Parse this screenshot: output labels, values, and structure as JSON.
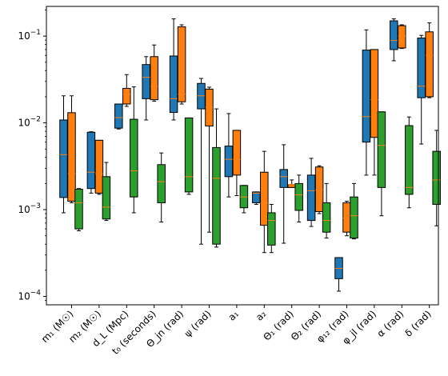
{
  "chart_data": {
    "type": "box",
    "yscale": "log",
    "ylim": [
      8e-05,
      0.22
    ],
    "yticks": [
      {
        "value": 0.0001,
        "base": "10",
        "exp": "−4"
      },
      {
        "value": 0.001,
        "base": "10",
        "exp": "−3"
      },
      {
        "value": 0.01,
        "base": "10",
        "exp": "−2"
      },
      {
        "value": 0.1,
        "base": "10",
        "exp": "−1"
      }
    ],
    "grid": false,
    "legend": "none",
    "categories": [
      {
        "label": "m₁ (M☉)"
      },
      {
        "label": "m₂ (M☉)"
      },
      {
        "label": "d_L (Mpc)"
      },
      {
        "label": "t₀ (seconds)"
      },
      {
        "label": "Θ_jn (rad)"
      },
      {
        "label": "ψ (rad)"
      },
      {
        "label": "a₁"
      },
      {
        "label": "a₂"
      },
      {
        "label": "Θ₁ (rad)"
      },
      {
        "label": "Θ₂ (rad)"
      },
      {
        "label": "φ₁₂ (rad)"
      },
      {
        "label": "φ_jl (rad)"
      },
      {
        "label": "α (rad)"
      },
      {
        "label": "δ (rad)"
      }
    ],
    "median_color": "#ff7f0e",
    "series": [
      {
        "color": "#1f77b4",
        "boxes": [
          {
            "whislo": 0.00092,
            "q1": 0.00138,
            "med": 0.0043,
            "q3": 0.0108,
            "whishi": 0.0205
          },
          {
            "whislo": 0.00155,
            "q1": 0.00175,
            "med": 0.0027,
            "q3": 0.0078,
            "whishi": 0.0079
          },
          {
            "whislo": 0.0085,
            "q1": 0.0087,
            "med": 0.0115,
            "q3": 0.0165,
            "whishi": 0.0165
          },
          {
            "whislo": 0.0108,
            "q1": 0.019,
            "med": 0.0335,
            "q3": 0.047,
            "whishi": 0.058
          },
          {
            "whislo": 0.0108,
            "q1": 0.0132,
            "med": 0.019,
            "q3": 0.059,
            "whishi": 0.158
          },
          {
            "whislo": 0.0004,
            "q1": 0.0145,
            "med": 0.0205,
            "q3": 0.0285,
            "whishi": 0.0325
          },
          {
            "whislo": 0.0014,
            "q1": 0.0024,
            "med": 0.0038,
            "q3": 0.0054,
            "whishi": 0.0128
          },
          {
            "whislo": 0.00115,
            "q1": 0.0012,
            "med": 0.00155,
            "q3": 0.0016,
            "whishi": 0.0016
          },
          {
            "whislo": 0.00041,
            "q1": 0.0018,
            "med": 0.0024,
            "q3": 0.0029,
            "whishi": 0.0056
          },
          {
            "whislo": 0.00064,
            "q1": 0.00075,
            "med": 0.00165,
            "q3": 0.0025,
            "whishi": 0.0039
          },
          {
            "whislo": 0.000115,
            "q1": 0.00016,
            "med": 0.00021,
            "q3": 0.00028,
            "whishi": 0.00028
          },
          {
            "whislo": 0.0025,
            "q1": 0.006,
            "med": 0.0118,
            "q3": 0.069,
            "whishi": 0.118
          },
          {
            "whislo": 0.052,
            "q1": 0.07,
            "med": 0.089,
            "q3": 0.15,
            "whishi": 0.158
          },
          {
            "whislo": 0.0057,
            "q1": 0.0195,
            "med": 0.0265,
            "q3": 0.095,
            "whishi": 0.102
          }
        ]
      },
      {
        "color": "#ff7f0e",
        "boxes": [
          {
            "whislo": 0.0012,
            "q1": 0.00125,
            "med": 0.0026,
            "q3": 0.0131,
            "whishi": 0.0205
          },
          {
            "whislo": 0.0015,
            "q1": 0.00155,
            "med": 0.0026,
            "q3": 0.0063,
            "whishi": 0.0063
          },
          {
            "whislo": 0.0155,
            "q1": 0.0165,
            "med": 0.0215,
            "q3": 0.025,
            "whishi": 0.036
          },
          {
            "whislo": 0.0178,
            "q1": 0.0185,
            "med": 0.0265,
            "q3": 0.058,
            "whishi": 0.079
          },
          {
            "whislo": 0.0165,
            "q1": 0.0175,
            "med": 0.0215,
            "q3": 0.128,
            "whishi": 0.135
          },
          {
            "whislo": 0.00055,
            "q1": 0.0092,
            "med": 0.0152,
            "q3": 0.0245,
            "whishi": 0.0258
          },
          {
            "whislo": 0.00145,
            "q1": 0.0025,
            "med": 0.0038,
            "q3": 0.0082,
            "whishi": 0.0082
          },
          {
            "whislo": 0.00032,
            "q1": 0.00066,
            "med": 0.0012,
            "q3": 0.0027,
            "whishi": 0.0047
          },
          {
            "whislo": 0.0018,
            "q1": 0.0018,
            "med": 0.00195,
            "q3": 0.00195,
            "whishi": 0.0022
          },
          {
            "whislo": 0.0009,
            "q1": 0.00095,
            "med": 0.0017,
            "q3": 0.0031,
            "whishi": 0.0032
          },
          {
            "whislo": 0.0005,
            "q1": 0.00055,
            "med": 0.0008,
            "q3": 0.0012,
            "whishi": 0.00125
          },
          {
            "whislo": 0.0025,
            "q1": 0.0068,
            "med": 0.0185,
            "q3": 0.07,
            "whishi": 0.07
          },
          {
            "whislo": 0.072,
            "q1": 0.073,
            "med": 0.1,
            "q3": 0.132,
            "whishi": 0.135
          },
          {
            "whislo": 0.0195,
            "q1": 0.02,
            "med": 0.06,
            "q3": 0.112,
            "whishi": 0.142
          }
        ]
      },
      {
        "color": "#2ca02c",
        "boxes": [
          {
            "whislo": 0.00057,
            "q1": 0.0006,
            "med": 0.0012,
            "q3": 0.00172,
            "whishi": 0.00175
          },
          {
            "whislo": 0.00075,
            "q1": 0.00078,
            "med": 0.00107,
            "q3": 0.0024,
            "whishi": 0.0035
          },
          {
            "whislo": 0.00092,
            "q1": 0.0014,
            "med": 0.0028,
            "q3": 0.011,
            "whishi": 0.026
          },
          {
            "whislo": 0.00072,
            "q1": 0.0012,
            "med": 0.0021,
            "q3": 0.0033,
            "whishi": 0.0045
          },
          {
            "whislo": 0.0015,
            "q1": 0.0016,
            "med": 0.0024,
            "q3": 0.0114,
            "whishi": 0.0114
          },
          {
            "whislo": 0.00037,
            "q1": 0.0004,
            "med": 0.0023,
            "q3": 0.0052,
            "whishi": 0.0145
          },
          {
            "whislo": 0.00092,
            "q1": 0.00105,
            "med": 0.0014,
            "q3": 0.0019,
            "whishi": 0.0019
          },
          {
            "whislo": 0.00032,
            "q1": 0.00039,
            "med": 0.00075,
            "q3": 0.00092,
            "whishi": 0.00115
          },
          {
            "whislo": 0.00072,
            "q1": 0.00098,
            "med": 0.00148,
            "q3": 0.002,
            "whishi": 0.0025
          },
          {
            "whislo": 0.00047,
            "q1": 0.00055,
            "med": 0.00075,
            "q3": 0.0012,
            "whishi": 0.002
          },
          {
            "whislo": 0.00046,
            "q1": 0.00047,
            "med": 0.00085,
            "q3": 0.0014,
            "whishi": 0.002
          },
          {
            "whislo": 0.00085,
            "q1": 0.0018,
            "med": 0.0055,
            "q3": 0.0134,
            "whishi": 0.0134
          },
          {
            "whislo": 0.00105,
            "q1": 0.0015,
            "med": 0.0018,
            "q3": 0.0093,
            "whishi": 0.0117
          },
          {
            "whislo": 0.00065,
            "q1": 0.00115,
            "med": 0.0022,
            "q3": 0.0047,
            "whishi": 0.0082
          }
        ]
      }
    ]
  }
}
